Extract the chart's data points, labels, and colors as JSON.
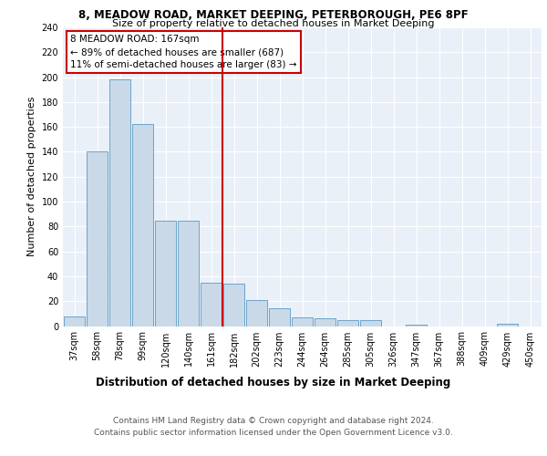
{
  "title1": "8, MEADOW ROAD, MARKET DEEPING, PETERBOROUGH, PE6 8PF",
  "title2": "Size of property relative to detached houses in Market Deeping",
  "xlabel": "Distribution of detached houses by size in Market Deeping",
  "ylabel": "Number of detached properties",
  "categories": [
    "37sqm",
    "58sqm",
    "78sqm",
    "99sqm",
    "120sqm",
    "140sqm",
    "161sqm",
    "182sqm",
    "202sqm",
    "223sqm",
    "244sqm",
    "264sqm",
    "285sqm",
    "305sqm",
    "326sqm",
    "347sqm",
    "367sqm",
    "388sqm",
    "409sqm",
    "429sqm",
    "450sqm"
  ],
  "values": [
    8,
    140,
    198,
    162,
    85,
    85,
    35,
    34,
    21,
    14,
    7,
    6,
    5,
    5,
    0,
    1,
    0,
    0,
    0,
    2,
    0
  ],
  "bar_color": "#c9d9e8",
  "bar_edge_color": "#5a9ac5",
  "vline_x": 6.5,
  "vline_color": "#cc0000",
  "annotation_text": "8 MEADOW ROAD: 167sqm\n← 89% of detached houses are smaller (687)\n11% of semi-detached houses are larger (83) →",
  "annotation_box_color": "#ffffff",
  "annotation_box_edge": "#cc0000",
  "ylim": [
    0,
    240
  ],
  "yticks": [
    0,
    20,
    40,
    60,
    80,
    100,
    120,
    140,
    160,
    180,
    200,
    220,
    240
  ],
  "bg_color": "#eaf0f8",
  "footer": "Contains HM Land Registry data © Crown copyright and database right 2024.\nContains public sector information licensed under the Open Government Licence v3.0.",
  "title1_fontsize": 8.5,
  "title2_fontsize": 8,
  "xlabel_fontsize": 8.5,
  "ylabel_fontsize": 8,
  "tick_fontsize": 7,
  "annotation_fontsize": 7.5,
  "footer_fontsize": 6.5
}
